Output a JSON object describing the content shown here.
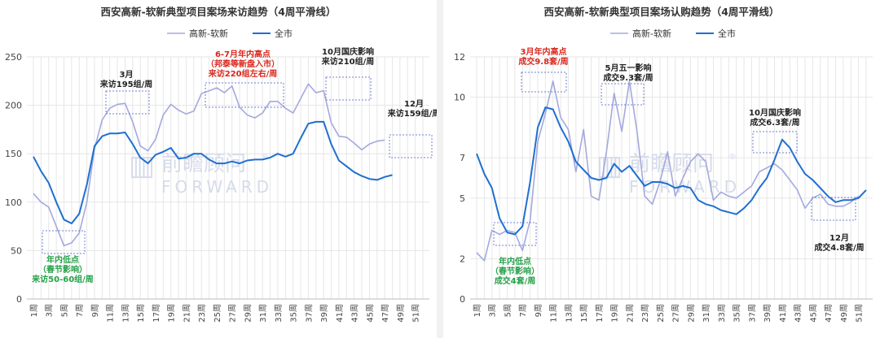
{
  "chart_data": [
    {
      "type": "line",
      "title": "西安高新-软新典型项目案场来访趋势（4周平滑线）",
      "xlabel": "",
      "ylabel": "",
      "ylim": [
        0,
        250
      ],
      "yticks": [
        0,
        50,
        100,
        150,
        200,
        250
      ],
      "x": [
        1,
        2,
        3,
        4,
        5,
        6,
        7,
        8,
        9,
        10,
        11,
        12,
        13,
        14,
        15,
        16,
        17,
        18,
        19,
        20,
        21,
        22,
        23,
        24,
        25,
        26,
        27,
        28,
        29,
        30,
        31,
        32,
        33,
        34,
        35,
        36,
        37,
        38,
        39,
        40,
        41,
        42,
        43,
        44,
        45,
        46,
        47,
        48,
        49,
        50,
        51,
        52
      ],
      "xtick_labels": [
        "1周",
        "3周",
        "5周",
        "7周",
        "9周",
        "11周",
        "13周",
        "15周",
        "17周",
        "19周",
        "21周",
        "23周",
        "25周",
        "27周",
        "29周",
        "31周",
        "33周",
        "35周",
        "37周",
        "39周",
        "41周",
        "43周",
        "45周",
        "47周",
        "49周",
        "51周"
      ],
      "legend_position": "top-center",
      "series": [
        {
          "name": "高新-软新",
          "color": "#a3a9dd",
          "width": 1.6,
          "values": [
            109,
            100,
            95,
            75,
            55,
            58,
            68,
            100,
            155,
            185,
            197,
            201,
            202,
            183,
            158,
            153,
            165,
            190,
            201,
            195,
            191,
            194,
            212,
            215,
            218,
            213,
            220,
            198,
            190,
            187,
            192,
            204,
            204,
            197,
            192,
            207,
            222,
            213,
            215,
            182,
            168,
            167,
            161,
            154,
            160,
            163,
            164,
            null,
            null,
            null,
            null,
            null
          ]
        },
        {
          "name": "全市",
          "color": "#1f6fd0",
          "width": 2,
          "values": [
            147,
            132,
            120,
            100,
            82,
            78,
            88,
            118,
            158,
            168,
            171,
            171,
            172,
            160,
            146,
            140,
            149,
            152,
            156,
            145,
            146,
            150,
            150,
            144,
            140,
            140,
            142,
            140,
            143,
            144,
            144,
            146,
            150,
            147,
            150,
            166,
            181,
            183,
            183,
            160,
            143,
            137,
            131,
            127,
            124,
            123,
            126,
            128,
            null,
            null,
            null,
            null
          ]
        }
      ],
      "annotations": [
        {
          "id": "march",
          "lines": [
            "3月",
            "来访195组/周"
          ],
          "color": "#222222"
        },
        {
          "id": "junjul",
          "lines": [
            "6-7月年内高点",
            "（邦泰等新盘入市）",
            "来访220组左右/周"
          ],
          "color": "#d9261c"
        },
        {
          "id": "oct",
          "lines": [
            "10月国庆影响",
            "来访210组/周"
          ],
          "color": "#222222"
        },
        {
          "id": "dec",
          "lines": [
            "12月",
            "来访159组/周"
          ],
          "color": "#222222"
        },
        {
          "id": "low",
          "lines": [
            "年内低点",
            "（春节影响）",
            "来访50-60组/周"
          ],
          "color": "#24a148"
        }
      ]
    },
    {
      "type": "line",
      "title": "西安高新-软新典型项目案场认购趋势（4周平滑线）",
      "xlabel": "",
      "ylabel": "",
      "ylim": [
        0,
        12
      ],
      "yticks": [
        0,
        2,
        5,
        7,
        10,
        12
      ],
      "x": [
        1,
        2,
        3,
        4,
        5,
        6,
        7,
        8,
        9,
        10,
        11,
        12,
        13,
        14,
        15,
        16,
        17,
        18,
        19,
        20,
        21,
        22,
        23,
        24,
        25,
        26,
        27,
        28,
        29,
        30,
        31,
        32,
        33,
        34,
        35,
        36,
        37,
        38,
        39,
        40,
        41,
        42,
        43,
        44,
        45,
        46,
        47,
        48,
        49,
        50,
        51,
        52
      ],
      "xtick_labels": [
        "1周",
        "3周",
        "5周",
        "7周",
        "9周",
        "11周",
        "13周",
        "15周",
        "17周",
        "19周",
        "21周",
        "23周",
        "25周",
        "27周",
        "29周",
        "31周",
        "33周",
        "35周",
        "37周",
        "39周",
        "41周",
        "43周",
        "45周",
        "47周",
        "49周",
        "51周"
      ],
      "legend_position": "top-center",
      "series": [
        {
          "name": "高新-软新",
          "color": "#a3a9dd",
          "width": 1.6,
          "values": [
            2.3,
            1.9,
            3.4,
            3.2,
            3.4,
            3.3,
            2.4,
            3.9,
            7.8,
            9.2,
            10.8,
            9.0,
            8.4,
            6.3,
            8.4,
            5.1,
            4.9,
            7.3,
            10.2,
            8.3,
            10.8,
            8.3,
            5.1,
            4.7,
            5.8,
            7.3,
            5.1,
            6.0,
            6.8,
            7.2,
            6.8,
            4.9,
            5.3,
            5.1,
            5.0,
            5.3,
            5.6,
            6.3,
            6.5,
            6.7,
            6.4,
            5.9,
            5.4,
            4.5,
            5.0,
            5.2,
            4.7,
            4.6,
            4.6,
            4.8,
            5.1,
            null
          ]
        },
        {
          "name": "全市",
          "color": "#1f6fd0",
          "width": 2,
          "values": [
            7.2,
            6.2,
            5.5,
            4.0,
            3.3,
            3.2,
            3.6,
            5.8,
            8.5,
            9.5,
            9.4,
            8.5,
            7.8,
            6.8,
            6.4,
            6.0,
            5.9,
            6.0,
            6.7,
            6.3,
            6.6,
            6.1,
            5.6,
            5.8,
            5.8,
            5.7,
            5.5,
            5.6,
            5.5,
            4.9,
            4.7,
            4.6,
            4.4,
            4.3,
            4.2,
            4.5,
            4.9,
            5.5,
            6.0,
            6.9,
            7.9,
            7.5,
            6.8,
            6.2,
            5.9,
            5.5,
            5.1,
            4.8,
            4.9,
            4.9,
            5.0,
            5.4
          ]
        }
      ],
      "annotations": [
        {
          "id": "mar",
          "lines": [
            "3月年内高点",
            "成交9.8套/周"
          ],
          "color": "#d9261c"
        },
        {
          "id": "may",
          "lines": [
            "5月五一影响",
            "成交9.3套/周"
          ],
          "color": "#222222"
        },
        {
          "id": "oct",
          "lines": [
            "10月国庆影响",
            "成交6.3套/周"
          ],
          "color": "#222222"
        },
        {
          "id": "dec",
          "lines": [
            "12月",
            "成交4.8套/周"
          ],
          "color": "#222222"
        },
        {
          "id": "low",
          "lines": [
            "年内低点",
            "（春节影响）",
            "成交4套/周"
          ],
          "color": "#24a148"
        }
      ]
    }
  ],
  "watermark": {
    "cn": "前瞻顾问",
    "en": "FORWARD",
    "reg": "®"
  }
}
